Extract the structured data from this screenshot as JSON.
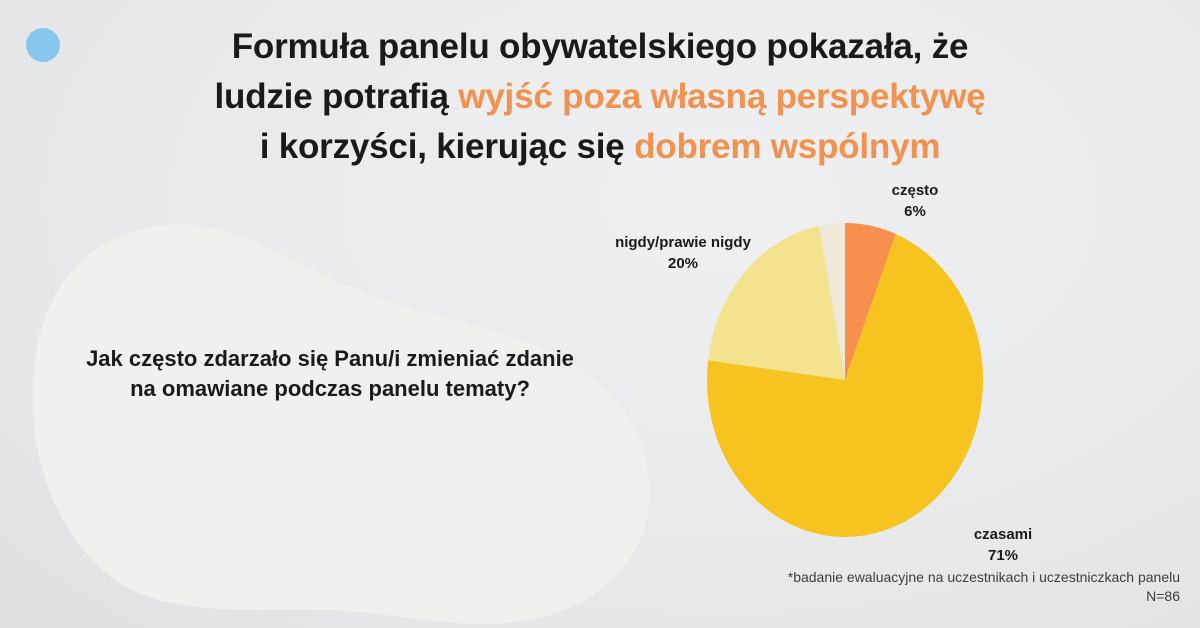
{
  "slide": {
    "title": {
      "line1_black": "Formuła panelu obywatelskiego pokazała, że",
      "line2_black": "ludzie potrafią ",
      "line2_orange": "wyjść poza własną perspektywę",
      "line3_black": "i korzyści, kierując się ",
      "line3_orange": "dobrem wspólnym"
    },
    "question": "Jak często zdarzało się Panu/i zmieniać zdanie na omawiane podczas panelu tematy?",
    "footnote_line1": "*badanie ewaluacyjne na uczestnikach i uczestniczkach panelu",
    "footnote_line2": "N=86",
    "colors": {
      "title_black": "#1A1A1A",
      "accent_orange": "#F3914E",
      "footnote_gray": "#3D3D3D",
      "blue_dot": "#87C7EE",
      "blob_fill": "#F0F0EE"
    }
  },
  "chart_data": {
    "type": "pie",
    "title": "Jak często zdarzało się Panu/i zmieniać zdanie na omawiane podczas panelu tematy?",
    "labels": [
      "często",
      "czasami",
      "nigdy/prawie nigdy",
      ""
    ],
    "values": [
      6,
      71,
      20,
      3
    ],
    "colors": [
      "#F8904D",
      "#F7C31E",
      "#F3E28E",
      "#EDE8D7"
    ],
    "start_angle_deg": 0,
    "direction": "clockwise",
    "legend_position": "outside-labels",
    "callouts": [
      {
        "name": "często",
        "pct": "6%"
      },
      {
        "name": "nigdy/prawie nigdy",
        "pct": "20%"
      },
      {
        "name": "czasami",
        "pct": "71%"
      }
    ],
    "sample_note": "N=86"
  }
}
